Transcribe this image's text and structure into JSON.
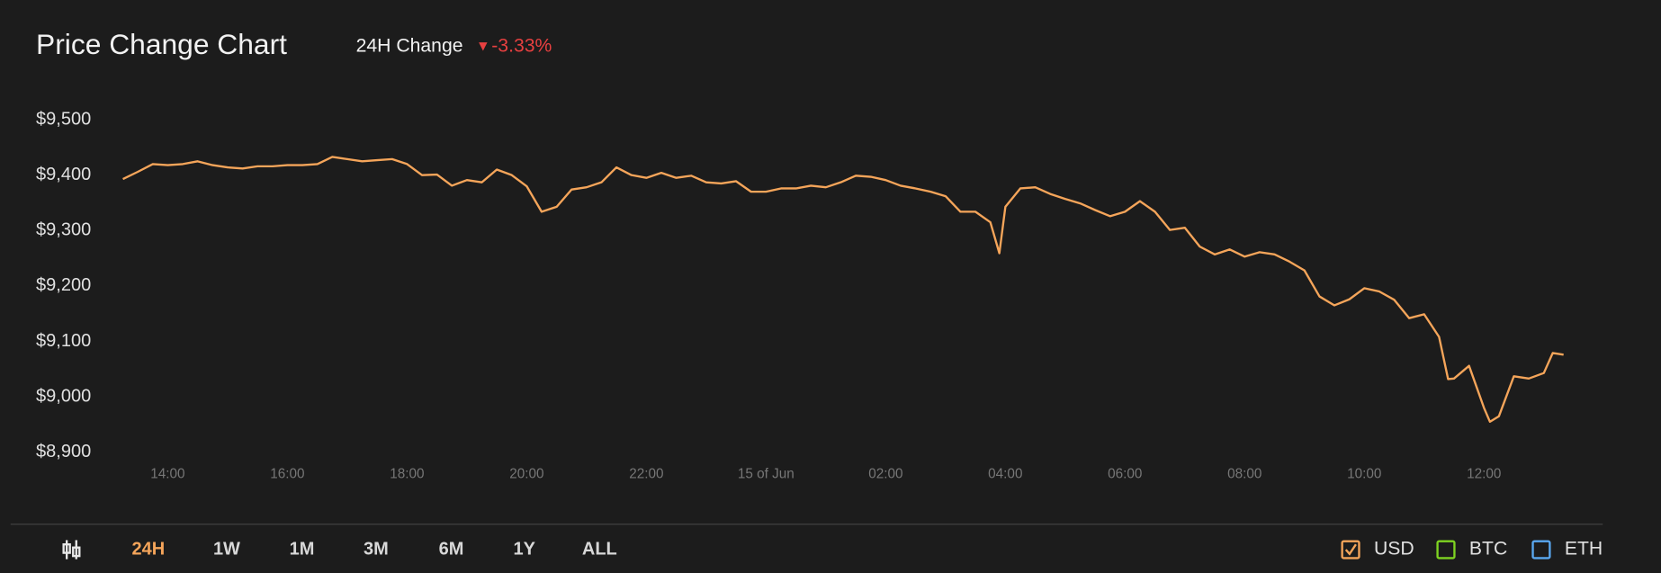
{
  "header": {
    "change_label": "24H Change",
    "change": "-3.33%"
  },
  "ranges": [
    "24H",
    "1W",
    "1M",
    "3M",
    "6M",
    "1Y",
    "ALL"
  ],
  "active_range": "24H",
  "currencies": [
    {
      "name": "USD",
      "color": "#f5a55a",
      "checked": true
    },
    {
      "name": "BTC",
      "color": "#7ed321",
      "checked": false
    },
    {
      "name": "ETH",
      "color": "#5aa8f0",
      "checked": false
    }
  ],
  "chart_data": {
    "type": "line",
    "title": "Price Change Chart",
    "x": [
      13.25,
      13.5,
      13.75,
      14,
      14.25,
      14.5,
      14.75,
      15,
      15.25,
      15.5,
      15.75,
      16,
      16.25,
      16.5,
      16.75,
      17,
      17.25,
      17.5,
      17.75,
      18,
      18.25,
      18.5,
      18.75,
      19,
      19.25,
      19.5,
      19.75,
      20,
      20.25,
      20.5,
      20.75,
      21,
      21.25,
      21.5,
      21.75,
      22,
      22.25,
      22.5,
      22.75,
      23,
      23.25,
      23.5,
      23.75,
      24,
      24.25,
      24.5,
      24.75,
      25,
      25.25,
      25.5,
      25.75,
      26,
      26.25,
      26.5,
      26.75,
      27,
      27.25,
      27.5,
      27.75,
      27.9,
      28,
      28.25,
      28.5,
      28.75,
      29,
      29.25,
      29.5,
      29.75,
      30,
      30.25,
      30.5,
      30.75,
      31,
      31.25,
      31.5,
      31.75,
      32,
      32.25,
      32.5,
      32.75,
      33,
      33.25,
      33.5,
      33.75,
      34,
      34.25,
      34.5,
      34.75,
      35,
      35.25,
      35.4,
      35.5,
      35.75,
      36,
      36.1,
      36.25,
      36.5,
      36.75,
      37,
      37.15,
      37.33
    ],
    "series": [
      {
        "color": "#f5a55a",
        "values": [
          9393,
          9406,
          9420,
          9418,
          9420,
          9425,
          9418,
          9414,
          9412,
          9416,
          9416,
          9418,
          9418,
          9420,
          9433,
          9429,
          9425,
          9427,
          9429,
          9420,
          9400,
          9401,
          9381,
          9391,
          9387,
          9410,
          9400,
          9380,
          9334,
          9343,
          9374,
          9378,
          9387,
          9414,
          9400,
          9395,
          9404,
          9395,
          9399,
          9387,
          9385,
          9389,
          9370,
          9370,
          9376,
          9376,
          9381,
          9378,
          9387,
          9399,
          9397,
          9391,
          9381,
          9376,
          9370,
          9362,
          9334,
          9334,
          9315,
          9259,
          9343,
          9376,
          9378,
          9366,
          9357,
          9349,
          9337,
          9326,
          9334,
          9353,
          9334,
          9301,
          9305,
          9271,
          9257,
          9266,
          9253,
          9261,
          9257,
          9244,
          9228,
          9181,
          9165,
          9176,
          9196,
          9190,
          9175,
          9142,
          9149,
          9108,
          9032,
          9033,
          9056,
          8980,
          8955,
          8965,
          9037,
          9033,
          9043,
          9079,
          9076
        ]
      }
    ],
    "xlim": [
      13.25,
      37.33
    ],
    "ylim": [
      8900,
      9500
    ],
    "xticks": [
      {
        "value": 14,
        "label": "14:00"
      },
      {
        "value": 16,
        "label": "16:00"
      },
      {
        "value": 18,
        "label": "18:00"
      },
      {
        "value": 20,
        "label": "20:00"
      },
      {
        "value": 22,
        "label": "22:00"
      },
      {
        "value": 24,
        "label": "15 of Jun"
      },
      {
        "value": 26,
        "label": "02:00"
      },
      {
        "value": 28,
        "label": "04:00"
      },
      {
        "value": 30,
        "label": "06:00"
      },
      {
        "value": 32,
        "label": "08:00"
      },
      {
        "value": 34,
        "label": "10:00"
      },
      {
        "value": 36,
        "label": "12:00"
      }
    ],
    "yticks": [
      {
        "value": 9500,
        "label": "$9,500"
      },
      {
        "value": 9400,
        "label": "$9,400"
      },
      {
        "value": 9300,
        "label": "$9,300"
      },
      {
        "value": 9200,
        "label": "$9,200"
      },
      {
        "value": 9100,
        "label": "$9,100"
      },
      {
        "value": 9000,
        "label": "$9,000"
      },
      {
        "value": 8900,
        "label": "$8,900"
      }
    ],
    "grid": false
  }
}
